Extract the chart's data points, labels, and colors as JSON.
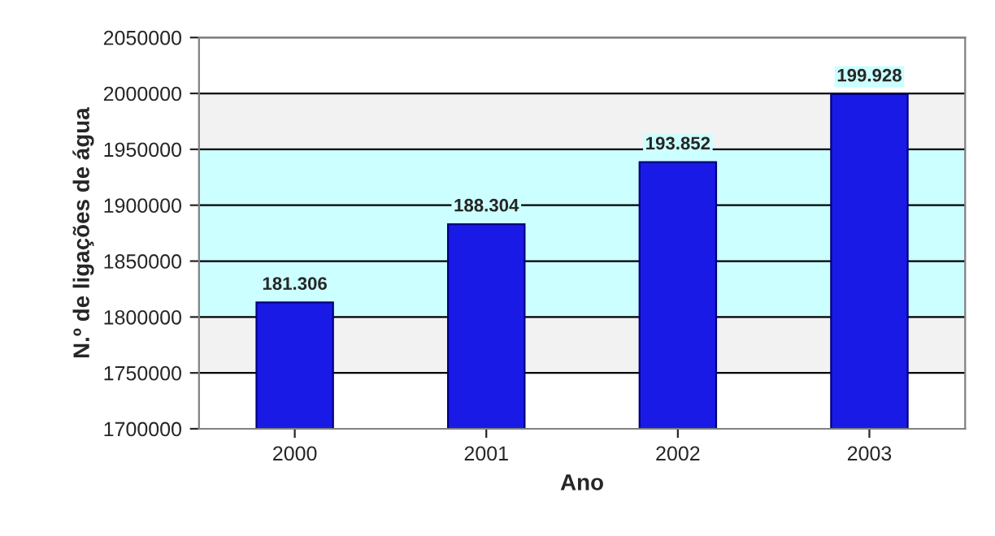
{
  "chart_data": {
    "type": "bar",
    "xlabel": "Ano",
    "ylabel": "N.º de ligações de água",
    "categories": [
      "2000",
      "2001",
      "2002",
      "2003"
    ],
    "series": [
      {
        "color": "#1a1ae6",
        "values": [
          1813000,
          1883000,
          1938500,
          1999300
        ]
      }
    ],
    "value_labels": [
      "181.306",
      "188.304",
      "193.852",
      "199.928"
    ],
    "ylim": [
      1700000,
      2050000
    ],
    "yticks": [
      1700000,
      1750000,
      1800000,
      1850000,
      1900000,
      1950000,
      2000000,
      2050000
    ],
    "grid": "y",
    "bands": [
      {
        "axis": "y",
        "from": 1800000,
        "to": 1950000,
        "color": "#ccffff"
      },
      {
        "axis": "y",
        "from": 1750000,
        "to": 1800000,
        "color": "#f2f2f2"
      },
      {
        "axis": "y",
        "from": 1950000,
        "to": 2000000,
        "color": "#f2f2f2"
      }
    ]
  }
}
